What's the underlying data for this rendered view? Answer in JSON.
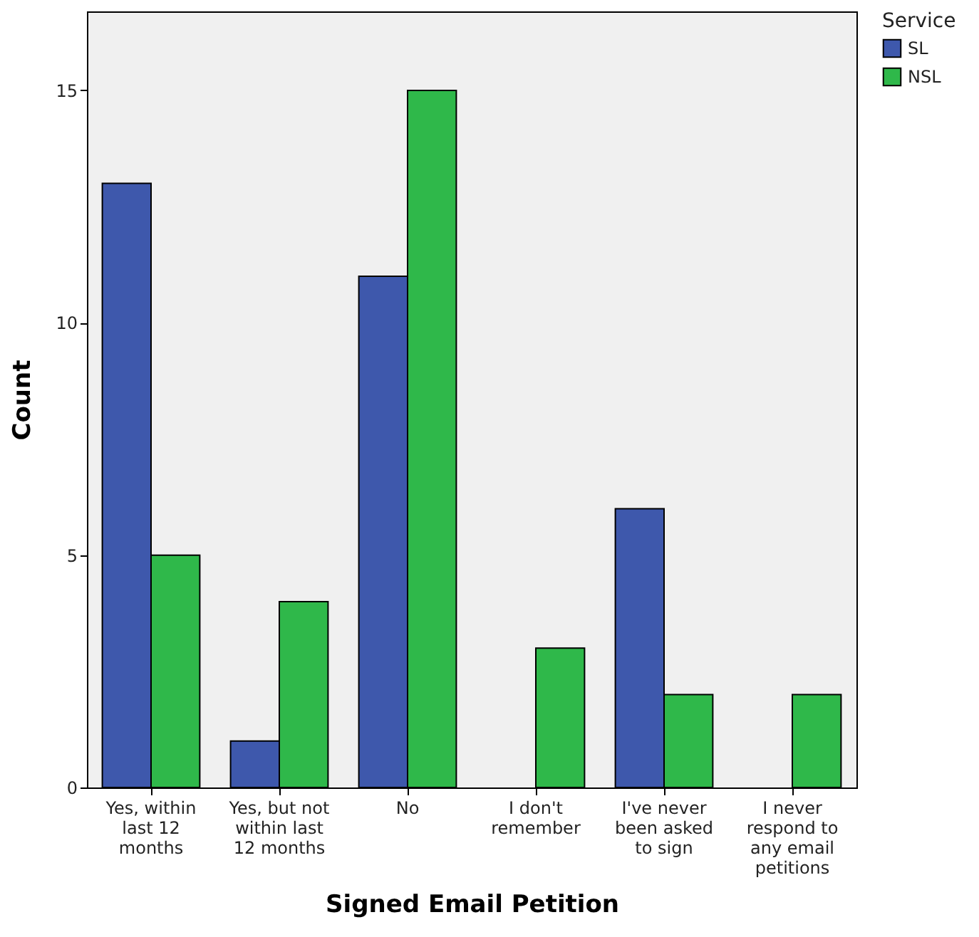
{
  "chart_data": {
    "type": "bar",
    "xlabel": "Signed Email Petition",
    "ylabel": "Count",
    "legend_title": "Service",
    "legend": "top right",
    "categories": [
      "Yes, within last 12 months",
      "Yes, but not within last 12 months",
      "No",
      "I don't remember",
      "I've never been asked to sign",
      "I never respond to any email petitions"
    ],
    "series": [
      {
        "name": "SL",
        "color": "#3e58ac",
        "values": [
          13,
          1,
          11,
          null,
          6,
          null
        ]
      },
      {
        "name": "NSL",
        "color": "#2fb84a",
        "values": [
          5,
          4,
          15,
          3,
          2,
          2
        ]
      }
    ],
    "ylim": [
      0,
      16.7
    ],
    "yticks": [
      0,
      5,
      10,
      15
    ],
    "grid": false
  }
}
